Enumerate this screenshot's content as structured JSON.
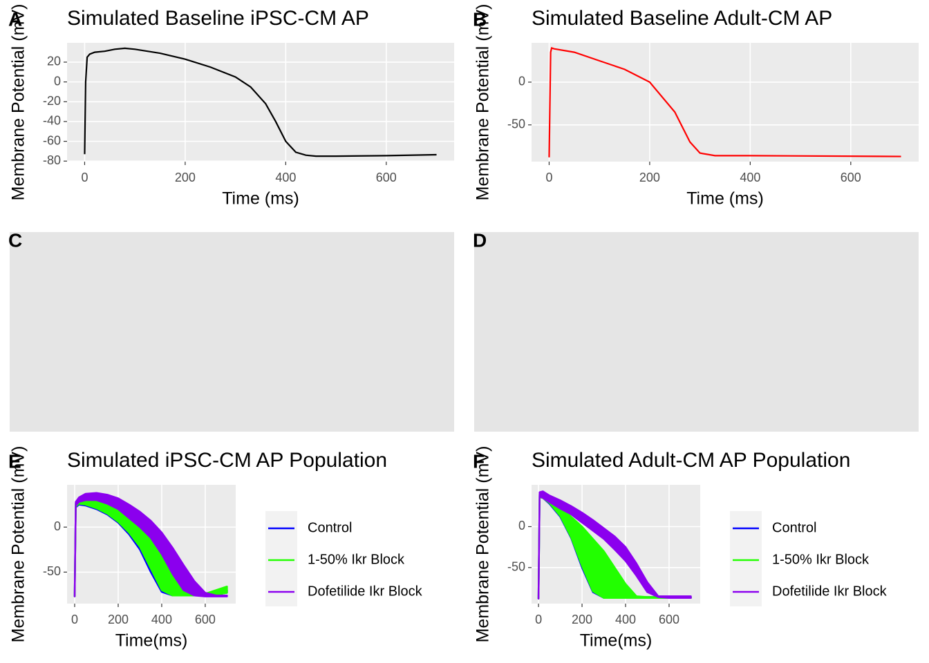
{
  "chart_data": [
    {
      "type": "line",
      "label": "A",
      "title": "Simulated Baseline iPSC-CM AP",
      "x_label": "Time (ms)",
      "y_label": "Membrane Potential (mV)",
      "x": [
        0,
        2,
        5,
        10,
        20,
        40,
        60,
        80,
        100,
        150,
        200,
        250,
        300,
        330,
        360,
        380,
        400,
        420,
        440,
        460,
        500,
        600,
        700
      ],
      "values": [
        -73,
        0,
        25,
        28,
        30,
        31,
        33,
        34,
        33,
        29,
        23,
        15,
        5,
        -5,
        -22,
        -40,
        -60,
        -71,
        -74,
        -75,
        -75,
        -74.5,
        -73.5
      ],
      "color": "#000000",
      "xlim": [
        -35,
        735
      ],
      "ylim": [
        -80.5,
        39.5
      ],
      "xticks": [
        0,
        200,
        400,
        600
      ],
      "yticks": [
        -80,
        -60,
        -40,
        -20,
        0,
        20
      ],
      "grid": true
    },
    {
      "type": "line",
      "label": "B",
      "title": "Simulated Baseline Adult-CM AP",
      "x_label": "Time (ms)",
      "y_label": "Membrane Potential (mV)",
      "x": [
        0,
        3,
        5,
        10,
        50,
        100,
        150,
        200,
        250,
        280,
        300,
        330,
        400,
        700
      ],
      "values": [
        -88,
        35,
        40,
        39,
        35,
        25,
        15,
        0,
        -35,
        -70,
        -83,
        -86,
        -86,
        -87
      ],
      "color": "#ff0000",
      "xlim": [
        -35,
        735
      ],
      "ylim": [
        -93,
        46
      ],
      "xticks": [
        0,
        200,
        400,
        600
      ],
      "yticks": [
        -50,
        0
      ],
      "grid": true
    },
    {
      "type": "empty",
      "label": "C"
    },
    {
      "type": "empty",
      "label": "D"
    },
    {
      "type": "band",
      "label": "E",
      "title": "Simulated  iPSC-CM AP Population",
      "x_label": "Time(ms)",
      "y_label": "Membrane Potential (mV)",
      "x": [
        0,
        5,
        20,
        50,
        100,
        150,
        200,
        250,
        300,
        350,
        400,
        450,
        500,
        550,
        600,
        650,
        700
      ],
      "series": [
        {
          "name": "Control",
          "color": "#0000ff",
          "lower": [
            -77,
            22,
            25,
            24,
            20,
            14,
            5,
            -8,
            -25,
            -50,
            -72,
            -76,
            -76,
            -76,
            -76,
            -75,
            -73
          ],
          "upper": [
            -77,
            26,
            29,
            29,
            27,
            22,
            14,
            2,
            -14,
            -38,
            -65,
            -74,
            -75,
            -75,
            -75,
            -73,
            -70
          ]
        },
        {
          "name": "1-50% Ikr Block",
          "color": "#22ff00",
          "lower": [
            -77,
            23,
            26,
            25,
            21,
            15,
            6,
            -6,
            -22,
            -46,
            -70,
            -76,
            -76,
            -76,
            -76,
            -75,
            -73
          ],
          "upper": [
            -77,
            27,
            30,
            31,
            32,
            29,
            24,
            16,
            6,
            -8,
            -28,
            -52,
            -68,
            -74,
            -74,
            -70,
            -66
          ]
        },
        {
          "name": "Dofetilide Ikr Block",
          "color": "#8b00ee",
          "lower": [
            -77,
            24,
            28,
            30,
            30,
            26,
            20,
            10,
            0,
            -12,
            -30,
            -52,
            -70,
            -76,
            -77,
            -77,
            -77
          ],
          "upper": [
            -77,
            28,
            33,
            37,
            38,
            36,
            32,
            25,
            17,
            7,
            -6,
            -23,
            -42,
            -60,
            -73,
            -76,
            -76
          ]
        }
      ],
      "xlim": [
        -35,
        740
      ],
      "ylim": [
        -85,
        47
      ],
      "xticks": [
        0,
        200,
        400,
        600
      ],
      "yticks": [
        -50,
        0
      ],
      "grid": true,
      "legend": "right"
    },
    {
      "type": "band",
      "label": "F",
      "title": "Simulated Adult-CM AP Population",
      "x_label": "Time(ms)",
      "y_label": "Membrane Potential (mV)",
      "x": [
        0,
        5,
        20,
        50,
        100,
        150,
        200,
        250,
        300,
        350,
        400,
        450,
        500,
        550,
        600,
        650,
        700
      ],
      "series": [
        {
          "name": "Control",
          "color": "#0000ff",
          "lower": [
            -88,
            36,
            35,
            28,
            12,
            -14,
            -50,
            -80,
            -87,
            -87,
            -87,
            -87,
            -87,
            -87,
            -87,
            -87,
            -87
          ],
          "upper": [
            -88,
            38,
            37,
            30,
            15,
            -10,
            -45,
            -76,
            -86,
            -86,
            -86,
            -86,
            -86,
            -86,
            -86,
            -86,
            -86
          ]
        },
        {
          "name": "1-50% Ikr Block",
          "color": "#22ff00",
          "lower": [
            -88,
            36,
            35,
            29,
            13,
            -13,
            -48,
            -79,
            -87,
            -87,
            -87,
            -87,
            -87,
            -87,
            -87,
            -87,
            -87
          ],
          "upper": [
            -88,
            40,
            40,
            35,
            25,
            12,
            0,
            -15,
            -30,
            -50,
            -70,
            -85,
            -86,
            -86,
            -86,
            -86,
            -86
          ]
        },
        {
          "name": "Dofetilide Ikr Block",
          "color": "#8b00ee",
          "lower": [
            -88,
            37,
            35,
            30,
            22,
            15,
            5,
            -5,
            -15,
            -28,
            -42,
            -60,
            -80,
            -86,
            -87,
            -87,
            -87
          ],
          "upper": [
            -88,
            42,
            43,
            38,
            32,
            25,
            17,
            8,
            -2,
            -12,
            -25,
            -45,
            -68,
            -85,
            -85,
            -85,
            -85
          ]
        }
      ],
      "xlim": [
        -32,
        743
      ],
      "ylim": [
        -94,
        51
      ],
      "xticks": [
        0,
        200,
        400,
        600
      ],
      "yticks": [
        -50,
        0
      ],
      "grid": true,
      "legend": "right"
    }
  ]
}
